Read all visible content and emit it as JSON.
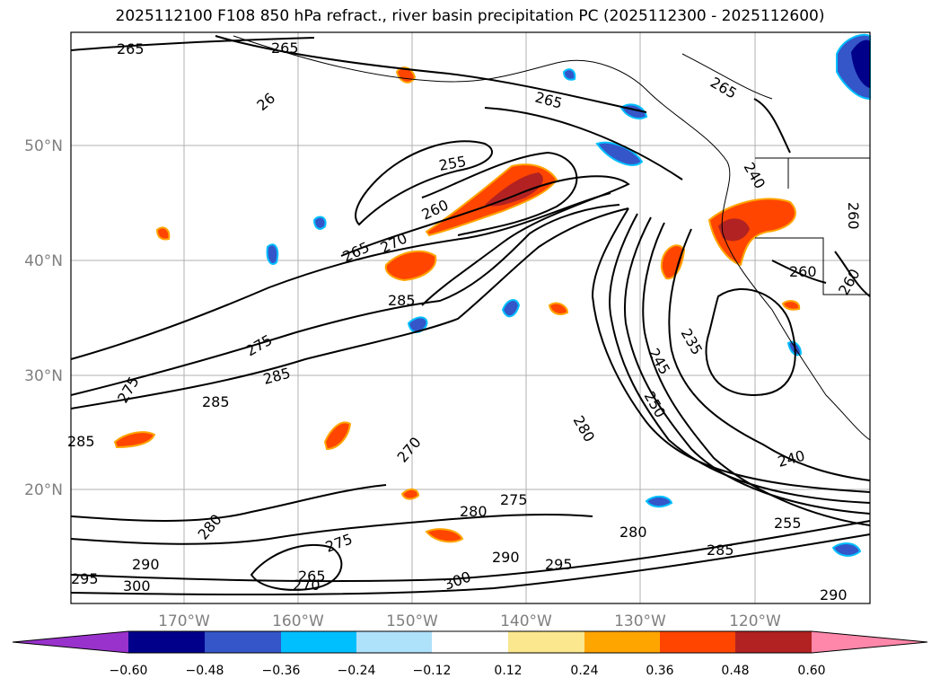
{
  "title": "2025112100 F108 850 hPa refract., river basin precipitation PC (2025112300 - 2025112600)",
  "lat_labels": [
    "50°N",
    "40°N",
    "30°N",
    "20°N"
  ],
  "lon_labels": [
    "170°W",
    "160°W",
    "150°W",
    "140°W",
    "130°W",
    "120°W"
  ],
  "contour_labels": [
    "265",
    "265",
    "265",
    "265",
    "26",
    "255",
    "260",
    "265",
    "270",
    "285",
    "275",
    "285",
    "275",
    "285",
    "285",
    "270",
    "280",
    "240",
    "235",
    "245",
    "250",
    "280",
    "275",
    "290",
    "280",
    "295",
    "300",
    "265",
    "270",
    "275",
    "280",
    "290",
    "295",
    "300",
    "255",
    "285",
    "260",
    "260",
    "260",
    "240",
    "290"
  ],
  "colorbar": {
    "ticks": [
      "−0.60",
      "−0.48",
      "−0.36",
      "−0.24",
      "−0.12",
      "0.12",
      "0.24",
      "0.36",
      "0.48",
      "0.60"
    ],
    "colors": [
      "#9932cc",
      "#00008b",
      "#3456c8",
      "#00bfff",
      "#aee1fa",
      "#ffffff",
      "#fbe78d",
      "#ffa500",
      "#ff4500",
      "#b22222",
      "#ff87aa"
    ]
  }
}
